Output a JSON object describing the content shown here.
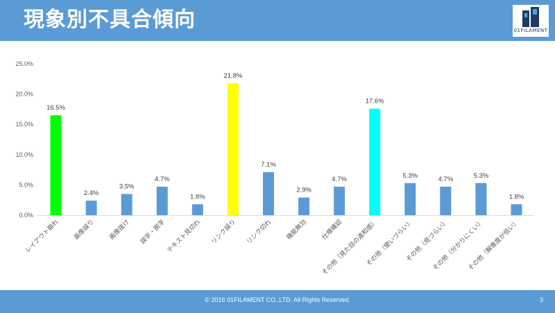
{
  "header": {
    "title": "現象別不具合傾向"
  },
  "logo": {
    "text": "01FILAMENT"
  },
  "footer": {
    "copyright": "© 2016 01FILAMENT CO.,LTD. All Rights Reserved.",
    "page_number": "3"
  },
  "chart_data": {
    "type": "bar",
    "categories": [
      "レイアウト崩れ",
      "画像誤り",
      "画像抜け",
      "誤字・脱字",
      "テキスト見切れ",
      "リンク誤り",
      "リンク切れ",
      "機能無効",
      "仕様確認",
      "その他（見た目の違和感）",
      "その他（使いづらい）",
      "その他（見づらい）",
      "その他（分かりにくい）",
      "その他（解像度が低い）"
    ],
    "values": [
      16.5,
      2.4,
      3.5,
      4.7,
      1.8,
      21.8,
      7.1,
      2.9,
      4.7,
      17.6,
      5.3,
      4.7,
      5.3,
      1.8
    ],
    "data_labels": [
      "16.5%",
      "2.4%",
      "3.5%",
      "4.7%",
      "1.8%",
      "21.8%",
      "7.1%",
      "2.9%",
      "4.7%",
      "17.6%",
      "5.3%",
      "4.7%",
      "5.3%",
      "1.8%"
    ],
    "colors": [
      "#00ff00",
      "#5b9bd5",
      "#5b9bd5",
      "#5b9bd5",
      "#5b9bd5",
      "#ffff00",
      "#5b9bd5",
      "#5b9bd5",
      "#5b9bd5",
      "#00ffff",
      "#5b9bd5",
      "#5b9bd5",
      "#5b9bd5",
      "#5b9bd5"
    ],
    "ylim": [
      0,
      25
    ],
    "yticks": [
      0,
      5,
      10,
      15,
      20,
      25
    ],
    "ytick_labels": [
      "0.0%",
      "5.0%",
      "10.0%",
      "15.0%",
      "20.0%",
      "25.0%"
    ],
    "grid": false,
    "title": "",
    "xlabel": "",
    "ylabel": ""
  }
}
